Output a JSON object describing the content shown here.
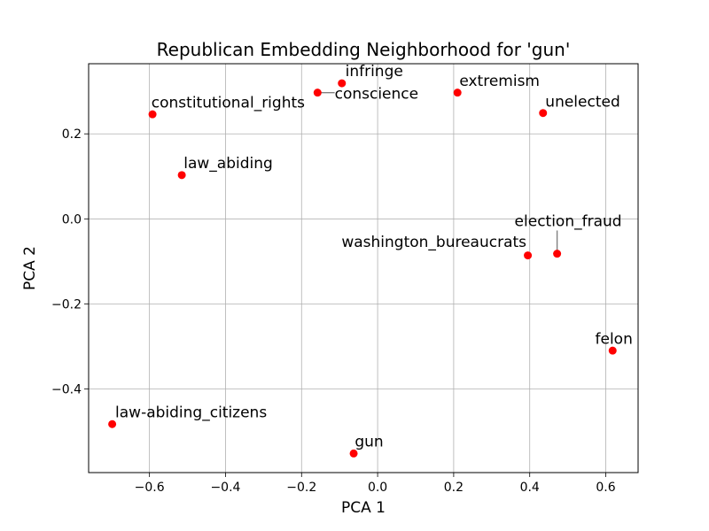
{
  "chart_data": {
    "type": "scatter",
    "title": "Republican Embedding Neighborhood for 'gun'",
    "xlabel": "PCA 1",
    "ylabel": "PCA 2",
    "xlim": [
      -0.76,
      0.685
    ],
    "ylim": [
      -0.597,
      0.365
    ],
    "xticks": [
      -0.6,
      -0.4,
      -0.2,
      0.0,
      0.2,
      0.4,
      0.6
    ],
    "yticks": [
      -0.4,
      -0.2,
      0.0,
      0.2
    ],
    "xtick_labels": [
      "−0.6",
      "−0.4",
      "−0.2",
      "0.0",
      "0.2",
      "0.4",
      "0.6"
    ],
    "ytick_labels": [
      "−0.4",
      "−0.2",
      "0.0",
      "0.2"
    ],
    "grid": true,
    "marker_color": "#ff0000",
    "leader_color": "#808080",
    "points": [
      {
        "label": "infringe",
        "x": -0.094,
        "y": 0.319,
        "label_x": -0.085,
        "label_y": 0.336
      },
      {
        "label": "conscience",
        "x": -0.158,
        "y": 0.297,
        "label_x": -0.113,
        "label_y": 0.283
      },
      {
        "label": "extremism",
        "x": 0.21,
        "y": 0.297,
        "label_x": 0.215,
        "label_y": 0.313
      },
      {
        "label": "unelected",
        "x": 0.435,
        "y": 0.249,
        "label_x": 0.441,
        "label_y": 0.264
      },
      {
        "label": "constitutional_rights",
        "x": -0.592,
        "y": 0.246,
        "label_x": -0.595,
        "label_y": 0.262
      },
      {
        "label": "law_abiding",
        "x": -0.515,
        "y": 0.103,
        "label_x": -0.51,
        "label_y": 0.119
      },
      {
        "label": "election_fraud",
        "x": 0.472,
        "y": -0.082,
        "label_x": 0.36,
        "label_y": -0.017
      },
      {
        "label": "washington_bureaucrats",
        "x": 0.395,
        "y": -0.086,
        "label_x": -0.095,
        "label_y": -0.066
      },
      {
        "label": "felon",
        "x": 0.618,
        "y": -0.31,
        "label_x": 0.572,
        "label_y": -0.294
      },
      {
        "label": "law-abiding_citizens",
        "x": -0.698,
        "y": -0.483,
        "label_x": -0.69,
        "label_y": -0.467
      },
      {
        "label": "gun",
        "x": -0.063,
        "y": -0.552,
        "label_x": -0.06,
        "label_y": -0.536
      }
    ]
  }
}
